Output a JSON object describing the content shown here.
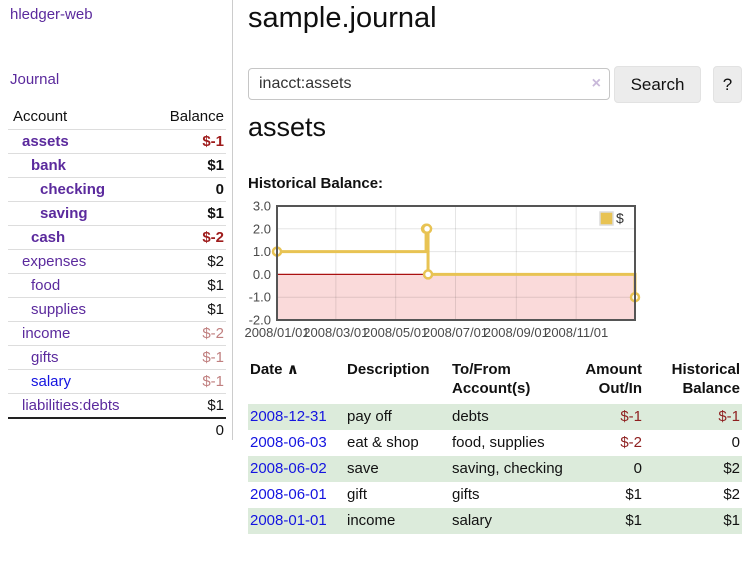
{
  "colors": {
    "link_purple": "#5b2a9d",
    "link_blue": "#1414e0",
    "neg_strong": "#9e1b1b",
    "neg_muted": "#c07f7f",
    "neg_table": "#8e1f1f",
    "stripe_green": "#dcebdb",
    "chart_line": "#e8c353",
    "chart_negative_fill": "#fadada",
    "chart_zero_line": "#aa1111",
    "chart_border": "#555555"
  },
  "sidebar": {
    "brand": "hledger-web",
    "journal_label": "Journal",
    "accounts_table": {
      "headers": {
        "account": "Account",
        "balance": "Balance"
      },
      "rows": [
        {
          "name": "assets",
          "balance": "$-1",
          "indent": 1,
          "bold": true,
          "name_color": "purple",
          "balance_color": "negstrong"
        },
        {
          "name": "bank",
          "balance": "$1",
          "indent": 2,
          "bold": true,
          "name_color": "purple",
          "balance_color": "pos"
        },
        {
          "name": "checking",
          "balance": "0",
          "indent": 3,
          "bold": true,
          "name_color": "purple",
          "balance_color": "pos"
        },
        {
          "name": "saving",
          "balance": "$1",
          "indent": 3,
          "bold": true,
          "name_color": "purple",
          "balance_color": "pos"
        },
        {
          "name": "cash",
          "balance": "$-2",
          "indent": 2,
          "bold": true,
          "name_color": "purple",
          "balance_color": "negstrong"
        },
        {
          "name": "expenses",
          "balance": "$2",
          "indent": 1,
          "bold": false,
          "name_color": "purple",
          "balance_color": "pos"
        },
        {
          "name": "food",
          "balance": "$1",
          "indent": 2,
          "bold": false,
          "name_color": "purple",
          "balance_color": "pos"
        },
        {
          "name": "supplies",
          "balance": "$1",
          "indent": 2,
          "bold": false,
          "name_color": "purple",
          "balance_color": "pos"
        },
        {
          "name": "income",
          "balance": "$-2",
          "indent": 1,
          "bold": false,
          "name_color": "purple",
          "balance_color": "negmuted"
        },
        {
          "name": "gifts",
          "balance": "$-1",
          "indent": 2,
          "bold": false,
          "name_color": "purple",
          "balance_color": "negmuted"
        },
        {
          "name": "salary",
          "balance": "$-1",
          "indent": 2,
          "bold": false,
          "name_color": "blue",
          "balance_color": "negmuted"
        },
        {
          "name": "liabilities:debts",
          "balance": "$1",
          "indent": 1,
          "bold": false,
          "name_color": "purple",
          "balance_color": "pos"
        }
      ],
      "total": "0"
    }
  },
  "main": {
    "title": "sample.journal",
    "search": {
      "value": "inacct:assets",
      "clear_icon": "×",
      "search_label": "Search",
      "help_label": "?"
    },
    "section_heading": "assets",
    "chart_label": "Historical Balance:"
  },
  "chart_data": {
    "type": "line",
    "title": "Historical Balance:",
    "step": true,
    "x_domain": [
      "2008-01-01",
      "2008-12-31"
    ],
    "ylim": [
      -2,
      3
    ],
    "y_ticks": [
      "3.0",
      "2.0",
      "1.0",
      "0.0",
      "-1.0",
      "-2.0"
    ],
    "y_tick_values": [
      3,
      2,
      1,
      0,
      -1,
      -2
    ],
    "x_ticks": [
      "2008/01/01",
      "2008/03/01",
      "2008/05/01",
      "2008/07/01",
      "2008/09/01",
      "2008/11/01"
    ],
    "grid": true,
    "negative_region": {
      "from": 0,
      "to": -2,
      "fill": "#fadada",
      "zero_line": "#aa1111"
    },
    "legend": {
      "label": "$",
      "position": "top-right",
      "swatch": "#e8c353"
    },
    "series": [
      {
        "name": "$",
        "color": "#e8c353",
        "points": [
          {
            "date": "2008-01-01",
            "value": 1
          },
          {
            "date": "2008-06-01",
            "value": 2
          },
          {
            "date": "2008-06-02",
            "value": 2
          },
          {
            "date": "2008-06-03",
            "value": 0
          },
          {
            "date": "2008-12-31",
            "value": -1
          }
        ]
      }
    ]
  },
  "register": {
    "headers": {
      "date": "Date",
      "sort_icon": "∧",
      "description": "Description",
      "account": "To/From Account(s)",
      "amount": "Amount Out/In",
      "balance": "Historical Balance"
    },
    "rows": [
      {
        "date": "2008-12-31",
        "description": "pay off",
        "account": "debts",
        "amount": "$-1",
        "amount_neg": true,
        "balance": "$-1",
        "balance_neg": true
      },
      {
        "date": "2008-06-03",
        "description": "eat & shop",
        "account": "food, supplies",
        "amount": "$-2",
        "amount_neg": true,
        "balance": "0",
        "balance_neg": false
      },
      {
        "date": "2008-06-02",
        "description": "save",
        "account": "saving, checking",
        "amount": "0",
        "amount_neg": false,
        "balance": "$2",
        "balance_neg": false
      },
      {
        "date": "2008-06-01",
        "description": "gift",
        "account": "gifts",
        "amount": "$1",
        "amount_neg": false,
        "balance": "$2",
        "balance_neg": false
      },
      {
        "date": "2008-01-01",
        "description": "income",
        "account": "salary",
        "amount": "$1",
        "amount_neg": false,
        "balance": "$1",
        "balance_neg": false
      }
    ]
  }
}
